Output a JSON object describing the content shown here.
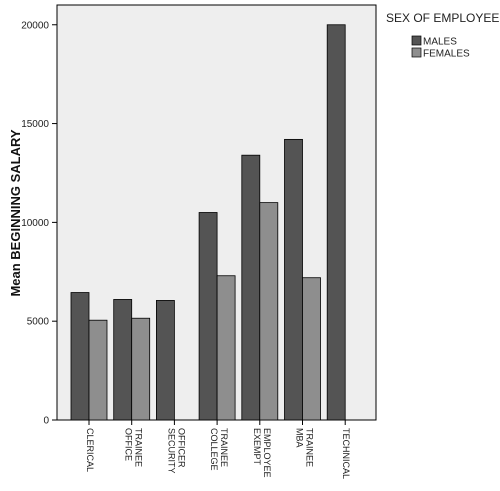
{
  "chart_data": {
    "type": "bar",
    "title": "",
    "xlabel": "",
    "ylabel": "Mean BEGINNING SALARY",
    "ylim": [
      0,
      21000
    ],
    "yticks": [
      0,
      5000,
      10000,
      15000,
      20000
    ],
    "grid": false,
    "legend_title": "SEX OF EMPLOYEE",
    "legend_position": "right",
    "categories": [
      [
        "CLERICAL"
      ],
      [
        "OFFICE",
        "TRAINEE"
      ],
      [
        "SECURITY",
        "OFFICER"
      ],
      [
        "COLLEGE",
        "TRAINEE"
      ],
      [
        "EXEMPT",
        "EMPLOYEE"
      ],
      [
        "MBA",
        "TRAINEE"
      ],
      [
        "TECHNICAL"
      ]
    ],
    "series": [
      {
        "name": "MALES",
        "color": "#545454",
        "values": [
          6450,
          6100,
          6050,
          10500,
          13400,
          14200,
          20000
        ]
      },
      {
        "name": "FEMALES",
        "color": "#8e8e8e",
        "values": [
          5050,
          5150,
          null,
          7300,
          11000,
          7200,
          null
        ]
      }
    ],
    "plot_background": "#eeeeee"
  }
}
